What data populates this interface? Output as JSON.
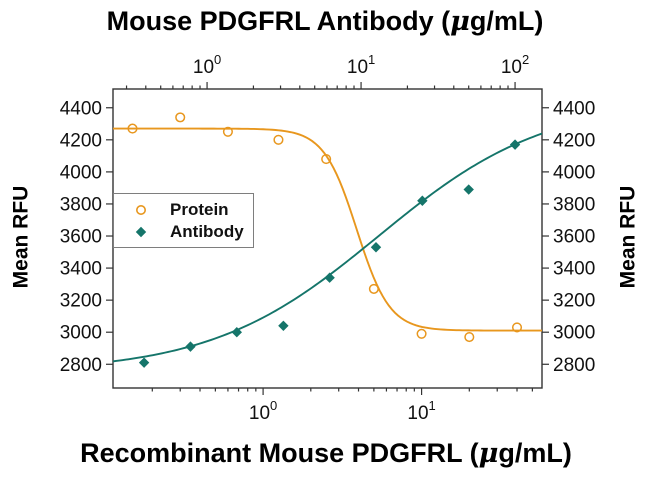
{
  "chart": {
    "top_title": "Mouse PDGFRL Antibody (μg/mL)",
    "bottom_title": "Recombinant Mouse PDGFRL (μg/mL)",
    "left_axis_label": "Mean RFU",
    "right_axis_label": "Mean RFU",
    "colors": {
      "protein": "#E8971E",
      "antibody": "#15756A",
      "axis": "#333333",
      "text": "#111111",
      "legend_border": "#7E7E7E",
      "background": "#FFFFFF"
    },
    "legend": {
      "items": [
        {
          "label": "Protein",
          "marker": "open-circle",
          "color": "#E8971E"
        },
        {
          "label": "Antibody",
          "marker": "filled-diamond",
          "color": "#15756A"
        }
      ]
    }
  },
  "chart_data": {
    "type": "scatter",
    "title": "Mouse PDGFRL Antibody (μg/mL)",
    "xlabel_top": "Mouse PDGFRL Antibody (μg/mL)",
    "xlabel_bottom": "Recombinant Mouse PDGFRL (μg/mL)",
    "ylabel_left": "Mean RFU",
    "ylabel_right": "Mean RFU",
    "x_scale": "log",
    "grid": false,
    "legend_position": "upper-left-inside",
    "ylim": [
      2652,
      4517
    ],
    "y_ticks": [
      2800,
      3000,
      3200,
      3400,
      3600,
      3800,
      4000,
      4200,
      4400
    ],
    "bottom_axis": {
      "range": [
        0.113,
        57.5
      ],
      "major_ticks": [
        1,
        10
      ],
      "tick_labels": [
        "10^0",
        "10^1"
      ]
    },
    "top_axis": {
      "range": [
        0.245,
        149.6
      ],
      "major_ticks": [
        1,
        10,
        100
      ],
      "tick_labels": [
        "10^0",
        "10^1",
        "10^2"
      ]
    },
    "series": [
      {
        "name": "Protein",
        "axis": "bottom",
        "marker": "open-circle",
        "color": "#E8971E",
        "x": [
          0.15,
          0.3,
          0.6,
          1.25,
          2.5,
          5,
          10,
          20,
          40
        ],
        "y": [
          4270,
          4340,
          4250,
          4200,
          4080,
          3270,
          2990,
          2970,
          3030
        ],
        "fit_curve": {
          "model": "4PL",
          "direction": "decreasing",
          "top": 4270,
          "bottom": 3010,
          "ec50": 3.9,
          "hill": 4.2
        }
      },
      {
        "name": "Antibody",
        "axis": "top",
        "marker": "filled-diamond",
        "color": "#15756A",
        "x": [
          0.39,
          0.78,
          1.56,
          3.13,
          6.25,
          12.5,
          25,
          50,
          100
        ],
        "y": [
          2810,
          2910,
          3000,
          3040,
          3340,
          3530,
          3820,
          3890,
          4170
        ],
        "fit_curve": {
          "model": "4PL",
          "direction": "increasing",
          "top": 4450,
          "bottom": 2750,
          "ec50": 13,
          "hill": 0.8
        }
      }
    ]
  }
}
